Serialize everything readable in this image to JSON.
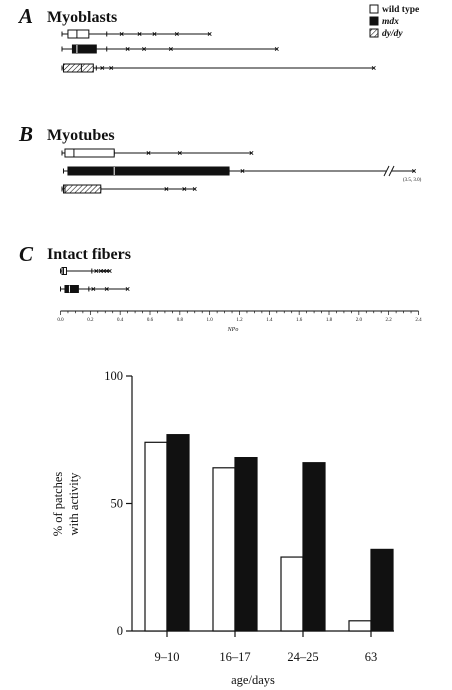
{
  "chart_data": [
    {
      "type": "boxplot",
      "xlabel": "NPo",
      "xlim": [
        0,
        2.4
      ],
      "xticks": [
        0.0,
        0.2,
        0.4,
        0.6,
        0.8,
        1.0,
        1.2,
        1.4,
        1.6,
        1.8,
        2.0,
        2.2,
        2.4
      ],
      "legend": {
        "placement": "top-right",
        "entries": [
          {
            "label": "wild type",
            "style": "open",
            "italic": false
          },
          {
            "label": "mdx",
            "style": "filled",
            "italic": true
          },
          {
            "label": "dy/dy",
            "style": "hatched",
            "italic": true
          }
        ]
      },
      "panels": [
        {
          "letter": "A",
          "title": "Myoblasts",
          "groups": [
            {
              "series": "wild type",
              "style": "open",
              "whisker_low": 0.01,
              "q1": 0.05,
              "median": 0.11,
              "q3": 0.19,
              "whisker_high": 0.31,
              "outliers": [
                0.41,
                0.53,
                0.63,
                0.78,
                1.0
              ]
            },
            {
              "series": "mdx",
              "style": "filled",
              "whisker_low": 0.01,
              "q1": 0.08,
              "median": 0.11,
              "q3": 0.24,
              "whisker_high": 0.31,
              "outliers": [
                0.45,
                0.56,
                0.74,
                1.45
              ]
            },
            {
              "series": "dy/dy",
              "style": "hatched",
              "whisker_low": 0.01,
              "q1": 0.02,
              "median": 0.14,
              "q3": 0.22,
              "whisker_high": 0.24,
              "outliers": [
                0.28,
                0.34,
                2.1
              ]
            }
          ]
        },
        {
          "letter": "B",
          "title": "Myotubes",
          "groups": [
            {
              "series": "wild type",
              "style": "open",
              "whisker_low": 0.01,
              "q1": 0.03,
              "median": 0.09,
              "q3": 0.36,
              "whisker_high": 0.36,
              "outliers": [
                0.59,
                0.8,
                1.28
              ]
            },
            {
              "series": "mdx",
              "style": "filled",
              "whisker_low": 0.02,
              "q1": 0.05,
              "median": 0.36,
              "q3": 1.13,
              "whisker_high": 1.13,
              "outliers": [
                1.22,
                3.0
              ]
            },
            {
              "series": "dy/dy",
              "style": "hatched",
              "whisker_low": 0.01,
              "q1": 0.02,
              "median": 0.03,
              "q3": 0.27,
              "whisker_high": 0.27,
              "outliers": [
                0.71,
                0.83,
                0.9
              ]
            }
          ],
          "break_annotation": "(3.5, 3.0)"
        },
        {
          "letter": "C",
          "title": "Intact fibers",
          "groups": [
            {
              "series": "wild type",
              "style": "open",
              "whisker_low": 0.0,
              "q1": 0.01,
              "median": 0.02,
              "q3": 0.04,
              "whisker_high": 0.21,
              "outliers": [
                0.24,
                0.27,
                0.29,
                0.31,
                0.33
              ]
            },
            {
              "series": "mdx",
              "style": "filled",
              "whisker_low": 0.0,
              "q1": 0.03,
              "median": 0.06,
              "q3": 0.12,
              "whisker_high": 0.19,
              "outliers": [
                0.22,
                0.31,
                0.45
              ]
            }
          ]
        }
      ]
    },
    {
      "type": "bar",
      "categories": [
        "9–10",
        "16–17",
        "24–25",
        "63"
      ],
      "series": [
        {
          "name": "wild type",
          "style": "open",
          "values": [
            74,
            64,
            29,
            4
          ]
        },
        {
          "name": "mdx",
          "style": "filled",
          "values": [
            77,
            68,
            66,
            32
          ]
        }
      ],
      "xlabel": "age/days",
      "ylabel_lines": [
        "% of patches",
        "with activity"
      ],
      "ylim": [
        0,
        100
      ],
      "yticks": [
        0,
        50,
        100
      ],
      "grid": false
    }
  ]
}
